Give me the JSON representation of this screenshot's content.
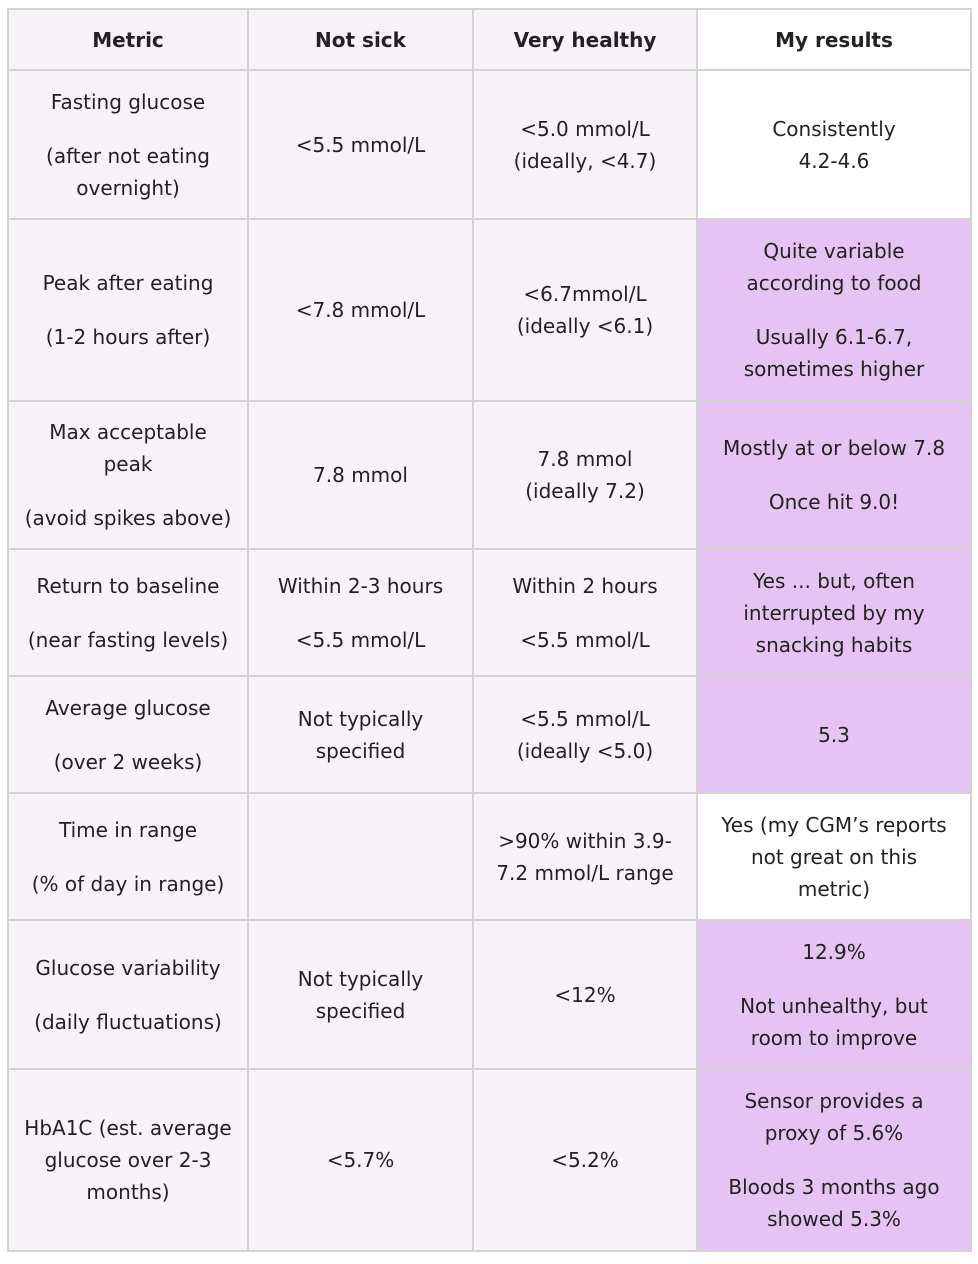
{
  "headers": [
    "Metric",
    "Not sick",
    "Very healthy",
    "My results"
  ],
  "rows": [
    {
      "metric": [
        "Fasting glucose",
        "(after not eating",
        "overnight)"
      ],
      "not_sick": [
        "<5.5 mmol/L"
      ],
      "very_healthy": [
        "<5.0 mmol/L",
        "(ideally, <4.7)"
      ],
      "my_results": [
        "Consistently",
        "4.2-4.6"
      ]
    },
    {
      "metric": [
        "Peak after eating",
        "(1-2 hours after)"
      ],
      "not_sick": [
        "<7.8 mmol/L"
      ],
      "very_healthy": [
        "<6.7mmol/L",
        "(ideally <6.1)"
      ],
      "my_results": [
        "Quite variable",
        "according to food",
        "Usually 6.1-6.7,",
        "sometimes higher"
      ]
    },
    {
      "metric": [
        "Max acceptable",
        "peak",
        "(avoid spikes above)"
      ],
      "not_sick": [
        "7.8 mmol"
      ],
      "very_healthy": [
        "7.8 mmol",
        "(ideally 7.2)"
      ],
      "my_results": [
        "Mostly at or below 7.8",
        "Once hit 9.0!"
      ]
    },
    {
      "metric": [
        "Return to baseline",
        "(near fasting levels)"
      ],
      "not_sick": [
        "Within 2-3 hours",
        "<5.5 mmol/L"
      ],
      "very_healthy": [
        "Within 2 hours",
        "<5.5 mmol/L"
      ],
      "my_results": [
        "Yes ... but, often",
        "interrupted by my",
        "snacking habits"
      ]
    },
    {
      "metric": [
        "Average glucose",
        "(over 2 weeks)"
      ],
      "not_sick": [
        "Not typically",
        "specified"
      ],
      "very_healthy": [
        "<5.5 mmol/L",
        "(ideally <5.0)"
      ],
      "my_results": [
        "5.3"
      ]
    },
    {
      "metric": [
        "Time in range",
        "(% of day in range)"
      ],
      "not_sick": [],
      "very_healthy": [
        ">90% within 3.9-",
        "7.2 mmol/L range"
      ],
      "my_results": [
        "Yes (my CGM’s reports",
        "not great on this",
        "metric)"
      ]
    },
    {
      "metric": [
        "Glucose variability",
        "(daily fluctuations)"
      ],
      "not_sick": [
        "Not typically",
        "specified"
      ],
      "very_healthy": [
        "<12%"
      ],
      "my_results": [
        "12.9%",
        "Not unhealthy, but",
        "room to improve"
      ]
    },
    {
      "metric": [
        "HbA1C (est. average",
        "glucose over 2-3",
        "months)"
      ],
      "not_sick": [
        "<5.7%"
      ],
      "very_healthy": [
        "<5.2%"
      ],
      "my_results": [
        "Sensor provides a",
        "proxy of 5.6%",
        "Bloods 3 months ago",
        "showed 5.3%"
      ]
    }
  ],
  "colors": {
    "cell_background": "#f7f2f7",
    "highlight_background": "#e5c4f3",
    "border": "#d3d3d3"
  }
}
